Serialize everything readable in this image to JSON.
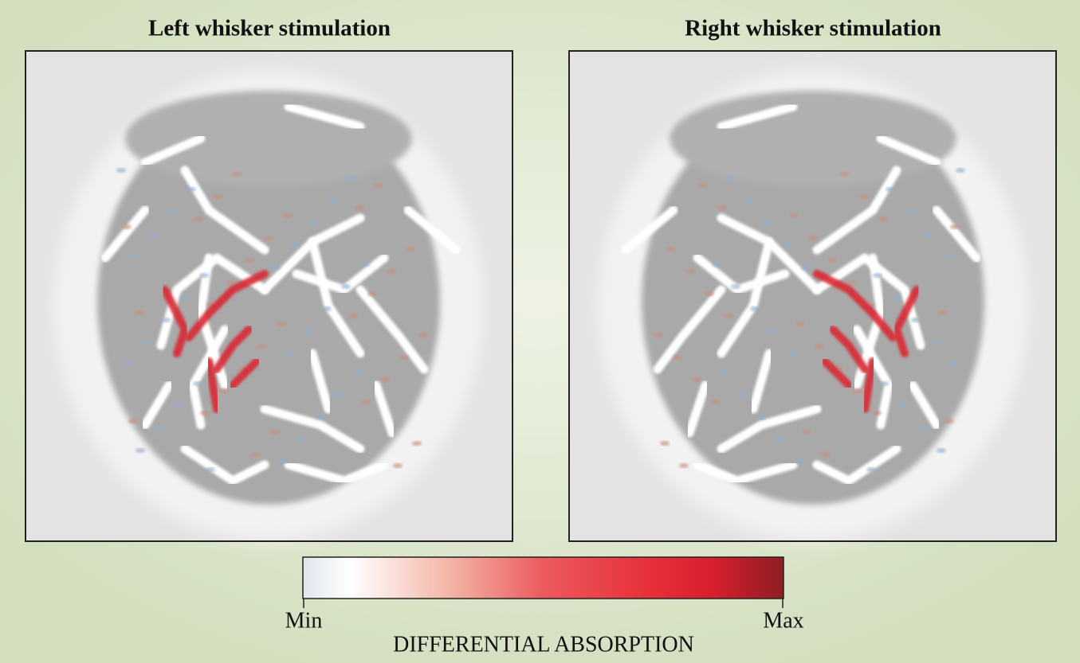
{
  "panels": [
    {
      "title": "Left whisker stimulation"
    },
    {
      "title": "Right whisker stimulation"
    }
  ],
  "colorbar": {
    "min_label": "Min",
    "max_label": "Max",
    "title": "DIFFERENTIAL ABSORPTION"
  }
}
